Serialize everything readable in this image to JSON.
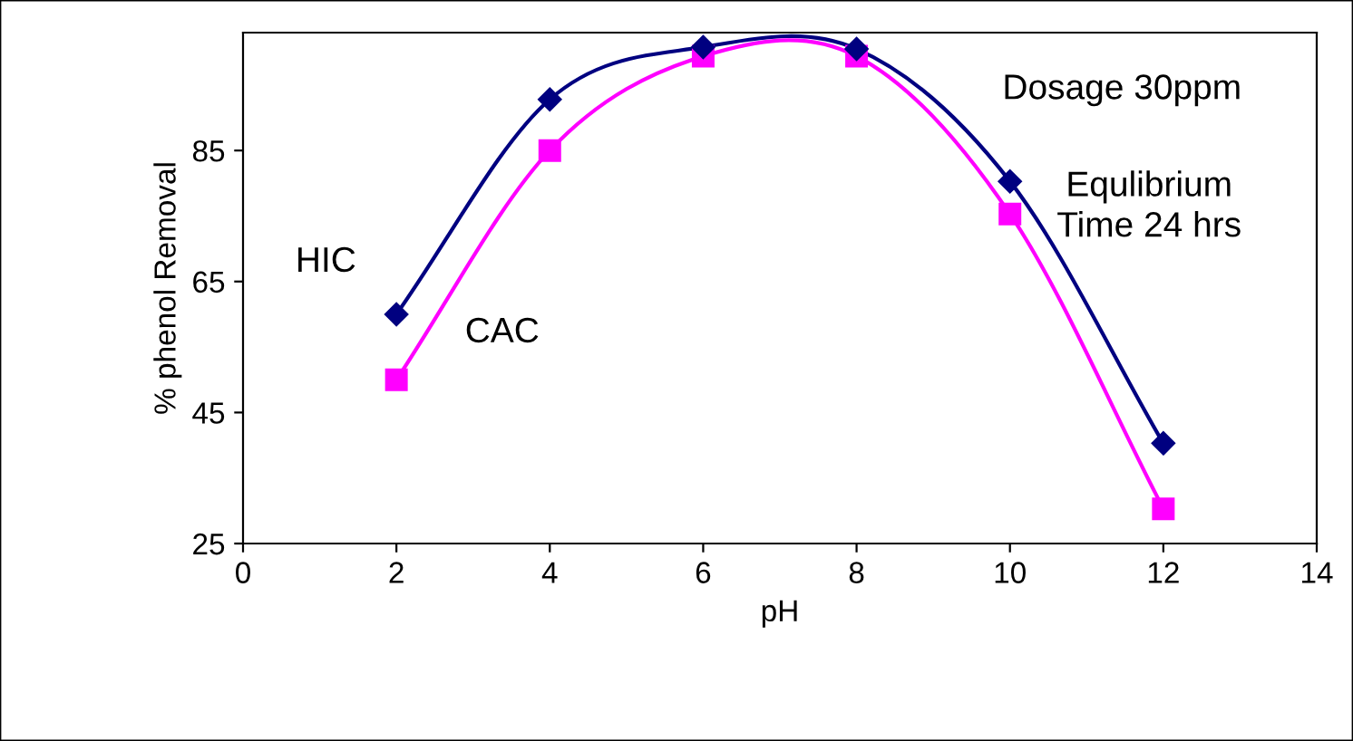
{
  "chart_data": {
    "type": "line",
    "xlabel": "pH",
    "ylabel": "% phenol Removal",
    "x": [
      2,
      4,
      6,
      8,
      10,
      12
    ],
    "series": [
      {
        "name": "HIC",
        "color": "#000080",
        "values": [
          60,
          92.8,
          100.8,
          100.5,
          80.3,
          40.3
        ],
        "marker": "diamond"
      },
      {
        "name": "CAC",
        "color": "#ff00ff",
        "values": [
          50,
          85,
          99.4,
          99.4,
          75.3,
          30.3
        ],
        "marker": "square"
      }
    ],
    "xlim": [
      0,
      14
    ],
    "xticks": [
      0,
      2,
      4,
      6,
      8,
      10,
      12,
      14
    ],
    "ylim": [
      25,
      103
    ],
    "yticks": [
      25,
      45,
      65,
      85
    ],
    "grid": false,
    "legend": false,
    "line_style": "solid",
    "annotations": [
      "Dosage 30ppm",
      "Equlibrium\nTime 24 hrs"
    ]
  }
}
